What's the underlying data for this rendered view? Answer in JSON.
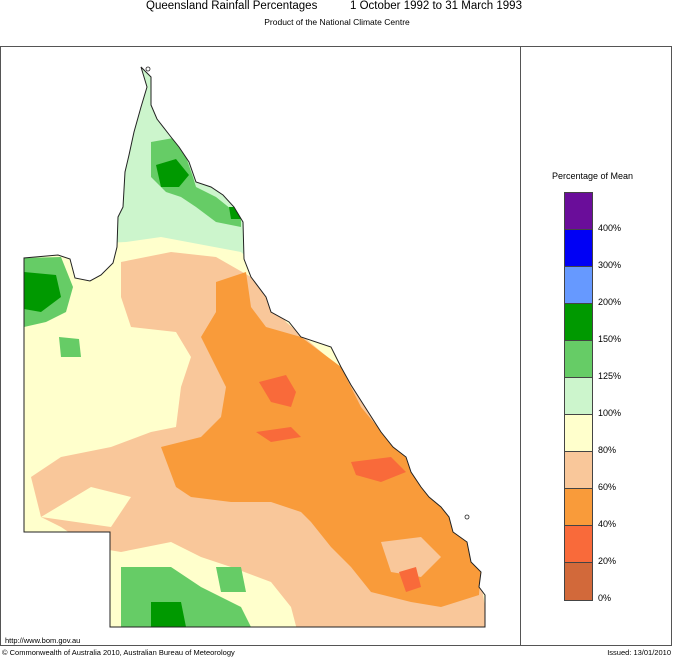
{
  "header": {
    "title": "Queensland Rainfall Percentages",
    "period": "1 October 1992 to 31 March 1993",
    "subtitle": "Product of the National Climate Centre"
  },
  "legend": {
    "title": "Percentage of Mean",
    "bands": [
      {
        "range": "400%+",
        "color": "#6a0d9a"
      },
      {
        "range": "300-400%",
        "color": "#0000f5"
      },
      {
        "range": "200-300%",
        "color": "#6699ff"
      },
      {
        "range": "150-200%",
        "color": "#009900"
      },
      {
        "range": "125-150%",
        "color": "#66cc66"
      },
      {
        "range": "100-125%",
        "color": "#ccf5cc"
      },
      {
        "range": "80-100%",
        "color": "#ffffcc"
      },
      {
        "range": "60-80%",
        "color": "#f9c79a"
      },
      {
        "range": "40-60%",
        "color": "#f99b3a"
      },
      {
        "range": "20-40%",
        "color": "#f96a3a"
      },
      {
        "range": "0-20%",
        "color": "#d2693a"
      }
    ],
    "ticks": [
      "400%",
      "300%",
      "200%",
      "150%",
      "125%",
      "100%",
      "80%",
      "60%",
      "40%",
      "20%",
      "0%"
    ]
  },
  "footer": {
    "url": "http://www.bom.gov.au",
    "copyright": "© Commonwealth of Australia 2010, Australian Bureau of Meteorology",
    "issued": "Issued: 13/01/2010"
  }
}
